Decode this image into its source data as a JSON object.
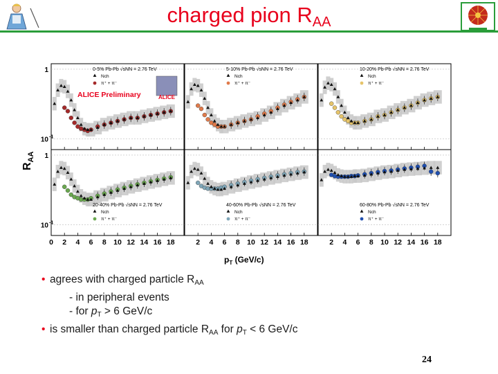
{
  "slide": {
    "title_main": "charged pion R",
    "title_sub": "AA",
    "page_number": "24"
  },
  "bullets": [
    {
      "parts": [
        "agrees with charged particle R",
        "AA"
      ]
    },
    {
      "indent": "- in peripheral events"
    },
    {
      "indent_parts": [
        "- for ",
        "p",
        "T",
        " > 6 GeV/c"
      ]
    },
    {
      "parts2": [
        "is smaller than charged particle R",
        "AA",
        " for ",
        "p",
        "T",
        " < 6 GeV/c"
      ]
    }
  ],
  "chart_data": {
    "type": "scatter",
    "y_axis_label_main": "R",
    "y_axis_label_sub": "AA",
    "x_axis_label": "p",
    "x_axis_label_sub": "T",
    "x_axis_unit": "(GeV/c)",
    "x_ticks": [
      "0",
      "2",
      "4",
      "6",
      "8",
      "10",
      "12",
      "14",
      "16",
      "18"
    ],
    "x_ticks_other": [
      "2",
      "4",
      "6",
      "8",
      "10",
      "12",
      "14",
      "16",
      "18"
    ],
    "y_ticks_top": [
      "1",
      "10",
      "-1"
    ],
    "y_ticks_bottom": [
      "1",
      "10",
      "-1"
    ],
    "yscale": "log",
    "xlim": [
      0,
      20
    ],
    "ylim": [
      0.07,
      1.2
    ],
    "preliminary_label": "ALICE Preliminary",
    "logo_text": "ALICE",
    "legend_charged": "N",
    "legend_charged_sub": "ch",
    "legend_pion": "π⁺ + π⁻",
    "colors": {
      "charged": "#111111",
      "band": "#c8c8c8",
      "pi_0_5": "#a52a2a",
      "pi_5_10": "#e07a4a",
      "pi_10_20": "#e6c46a",
      "pi_20_40": "#6aa84f",
      "pi_40_60": "#7fa6b8",
      "pi_60_80": "#1f4fb0",
      "accent": "#e8001c",
      "rule": "#2a9d3a"
    },
    "panels": [
      {
        "centrality": "0-5% Pb-Pb",
        "energy": "2.76 TeV",
        "pion_color_key": "pi_0_5",
        "charged": {
          "x": [
            0.5,
            1,
            1.5,
            2,
            2.5,
            3,
            3.5,
            4,
            4.5,
            5,
            5.5,
            6,
            7,
            8,
            9,
            10,
            11,
            12,
            13,
            14,
            15,
            16,
            17,
            18
          ],
          "y": [
            0.32,
            0.5,
            0.58,
            0.56,
            0.48,
            0.36,
            0.26,
            0.2,
            0.16,
            0.14,
            0.135,
            0.135,
            0.145,
            0.16,
            0.17,
            0.18,
            0.19,
            0.2,
            0.2,
            0.21,
            0.22,
            0.23,
            0.24,
            0.25
          ]
        },
        "pion": {
          "x": [
            2,
            2.5,
            3,
            3.5,
            4,
            4.5,
            5,
            5.5,
            6,
            7,
            8,
            9,
            10,
            11,
            12,
            13,
            14,
            15,
            16,
            17,
            18
          ],
          "y": [
            0.28,
            0.25,
            0.2,
            0.17,
            0.15,
            0.14,
            0.135,
            0.13,
            0.135,
            0.15,
            0.16,
            0.17,
            0.18,
            0.19,
            0.2,
            0.2,
            0.21,
            0.22,
            0.23,
            0.24,
            0.25
          ]
        }
      },
      {
        "centrality": "5-10% Pb-Pb",
        "energy": "2.76 TeV",
        "pion_color_key": "pi_5_10",
        "charged": {
          "x": [
            0.5,
            1,
            1.5,
            2,
            2.5,
            3,
            3.5,
            4,
            4.5,
            5,
            5.5,
            6,
            7,
            8,
            9,
            10,
            11,
            12,
            13,
            14,
            15,
            16,
            17,
            18
          ],
          "y": [
            0.34,
            0.52,
            0.6,
            0.58,
            0.5,
            0.38,
            0.28,
            0.22,
            0.18,
            0.16,
            0.15,
            0.15,
            0.16,
            0.17,
            0.18,
            0.19,
            0.2,
            0.22,
            0.24,
            0.27,
            0.3,
            0.33,
            0.36,
            0.4
          ]
        },
        "pion": {
          "x": [
            2,
            2.5,
            3,
            3.5,
            4,
            4.5,
            5,
            5.5,
            6,
            7,
            8,
            9,
            10,
            11,
            12,
            13,
            14,
            15,
            16,
            17,
            18
          ],
          "y": [
            0.3,
            0.27,
            0.22,
            0.19,
            0.17,
            0.16,
            0.15,
            0.15,
            0.15,
            0.16,
            0.17,
            0.18,
            0.19,
            0.21,
            0.23,
            0.25,
            0.28,
            0.31,
            0.34,
            0.37,
            0.4
          ]
        }
      },
      {
        "centrality": "10-20% Pb-Pb",
        "energy": "2.76 TeV",
        "pion_color_key": "pi_10_20",
        "charged": {
          "x": [
            0.5,
            1,
            1.5,
            2,
            2.5,
            3,
            3.5,
            4,
            4.5,
            5,
            5.5,
            6,
            7,
            8,
            9,
            10,
            11,
            12,
            13,
            14,
            15,
            16,
            17,
            18
          ],
          "y": [
            0.36,
            0.55,
            0.63,
            0.6,
            0.52,
            0.4,
            0.3,
            0.24,
            0.2,
            0.18,
            0.17,
            0.17,
            0.18,
            0.19,
            0.21,
            0.22,
            0.24,
            0.26,
            0.28,
            0.3,
            0.33,
            0.36,
            0.38,
            0.4
          ]
        },
        "pion": {
          "x": [
            2,
            2.5,
            3,
            3.5,
            4,
            4.5,
            5,
            5.5,
            6,
            7,
            8,
            9,
            10,
            11,
            12,
            13,
            14,
            15,
            16,
            17,
            18
          ],
          "y": [
            0.32,
            0.28,
            0.24,
            0.21,
            0.19,
            0.18,
            0.17,
            0.17,
            0.17,
            0.18,
            0.19,
            0.21,
            0.22,
            0.24,
            0.26,
            0.28,
            0.3,
            0.33,
            0.36,
            0.38,
            0.4
          ]
        }
      },
      {
        "centrality": "20-40% Pb-Pb",
        "energy": "2.76 TeV",
        "pion_color_key": "pi_20_40",
        "charged": {
          "x": [
            0.5,
            1,
            1.5,
            2,
            2.5,
            3,
            3.5,
            4,
            4.5,
            5,
            5.5,
            6,
            7,
            8,
            9,
            10,
            11,
            12,
            13,
            14,
            15,
            16,
            17,
            18
          ],
          "y": [
            0.38,
            0.58,
            0.66,
            0.64,
            0.56,
            0.45,
            0.36,
            0.3,
            0.26,
            0.24,
            0.23,
            0.23,
            0.25,
            0.27,
            0.29,
            0.31,
            0.33,
            0.35,
            0.37,
            0.39,
            0.41,
            0.43,
            0.45,
            0.47
          ]
        },
        "pion": {
          "x": [
            2,
            2.5,
            3,
            3.5,
            4,
            4.5,
            5,
            5.5,
            6,
            7,
            8,
            9,
            10,
            11,
            12,
            13,
            14,
            15,
            16,
            17,
            18
          ],
          "y": [
            0.35,
            0.31,
            0.27,
            0.25,
            0.24,
            0.23,
            0.23,
            0.23,
            0.24,
            0.26,
            0.28,
            0.3,
            0.32,
            0.34,
            0.36,
            0.38,
            0.4,
            0.42,
            0.44,
            0.46,
            0.48
          ]
        }
      },
      {
        "centrality": "40-60% Pb-Pb",
        "energy": "2.76 TeV",
        "pion_color_key": "pi_40_60",
        "charged": {
          "x": [
            0.5,
            1,
            1.5,
            2,
            2.5,
            3,
            3.5,
            4,
            4.5,
            5,
            5.5,
            6,
            7,
            8,
            9,
            10,
            11,
            12,
            13,
            14,
            15,
            16,
            17,
            18
          ],
          "y": [
            0.4,
            0.58,
            0.64,
            0.62,
            0.55,
            0.46,
            0.39,
            0.35,
            0.33,
            0.32,
            0.32,
            0.33,
            0.35,
            0.37,
            0.39,
            0.41,
            0.43,
            0.45,
            0.47,
            0.49,
            0.51,
            0.53,
            0.55,
            0.57
          ]
        },
        "pion": {
          "x": [
            2,
            2.5,
            3,
            3.5,
            4,
            4.5,
            5,
            5.5,
            6,
            7,
            8,
            9,
            10,
            11,
            12,
            13,
            14,
            15,
            16,
            17,
            18
          ],
          "y": [
            0.4,
            0.36,
            0.34,
            0.33,
            0.33,
            0.33,
            0.33,
            0.34,
            0.35,
            0.37,
            0.39,
            0.41,
            0.43,
            0.45,
            0.47,
            0.49,
            0.51,
            0.53,
            0.55,
            0.57,
            0.58
          ]
        }
      },
      {
        "centrality": "60-80% Pb-Pb",
        "energy": "2.76 TeV",
        "pion_color_key": "pi_60_80",
        "charged": {
          "x": [
            0.5,
            1,
            1.5,
            2,
            2.5,
            3,
            3.5,
            4,
            4.5,
            5,
            5.5,
            6,
            7,
            8,
            9,
            10,
            11,
            12,
            13,
            14,
            15,
            16,
            17,
            18
          ],
          "y": [
            0.44,
            0.58,
            0.62,
            0.6,
            0.56,
            0.52,
            0.5,
            0.49,
            0.49,
            0.49,
            0.5,
            0.5,
            0.51,
            0.53,
            0.55,
            0.57,
            0.58,
            0.6,
            0.62,
            0.63,
            0.64,
            0.65,
            0.66,
            0.66
          ]
        },
        "pion": {
          "x": [
            2,
            2.5,
            3,
            3.5,
            4,
            4.5,
            5,
            5.5,
            6,
            7,
            8,
            9,
            10,
            11,
            12,
            13,
            14,
            15,
            16,
            17,
            18
          ],
          "y": [
            0.52,
            0.5,
            0.49,
            0.49,
            0.49,
            0.49,
            0.5,
            0.5,
            0.51,
            0.53,
            0.55,
            0.57,
            0.59,
            0.6,
            0.62,
            0.64,
            0.66,
            0.68,
            0.7,
            0.58,
            0.55
          ]
        }
      }
    ]
  }
}
